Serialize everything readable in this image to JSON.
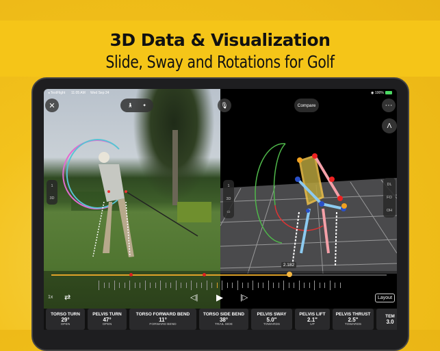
{
  "headline": {
    "title": "3D Data & Visualization",
    "subtitle": "Slide, Sway and Rotations for Golf"
  },
  "status_bar": {
    "back_app": "◂ TestFlight",
    "time": "11:05 AM",
    "date": "Wed Sep 24",
    "battery": "100%"
  },
  "toolbar": {
    "compare_label": "Compare",
    "close_icon": "close-icon",
    "more_icon": "ellipsis-icon",
    "mic_icon": "microphone-icon"
  },
  "left_panel": {
    "items": [
      "1",
      "3D"
    ]
  },
  "right_side_panel": {
    "items": [
      "1",
      "3D"
    ]
  },
  "view_options": [
    "DL",
    "FO",
    "OH"
  ],
  "timeline": {
    "current_time": "2.182",
    "progress": 0.71,
    "accent": "#e0a32a"
  },
  "playback": {
    "speed": "1x",
    "layout_label": "Layout"
  },
  "metrics": [
    {
      "label": "TORSO TURN",
      "value": "29°",
      "sub": "OPEN"
    },
    {
      "label": "PELVIS TURN",
      "value": "47°",
      "sub": "OPEN"
    },
    {
      "label": "TORSO FORWARD BEND",
      "value": "11°",
      "sub": "FORWARD BEND"
    },
    {
      "label": "TORSO SIDE BEND",
      "value": "38°",
      "sub": "TRAIL SIDE"
    },
    {
      "label": "PELVIS SWAY",
      "value": "5.0\"",
      "sub": "TOWARDS"
    },
    {
      "label": "PELVIS LIFT",
      "value": "2.1\"",
      "sub": "UP"
    },
    {
      "label": "PELVIS THRUST",
      "value": "2.5\"",
      "sub": "TOWARDS"
    },
    {
      "label": "TEM",
      "value": "3.0",
      "sub": ""
    }
  ]
}
